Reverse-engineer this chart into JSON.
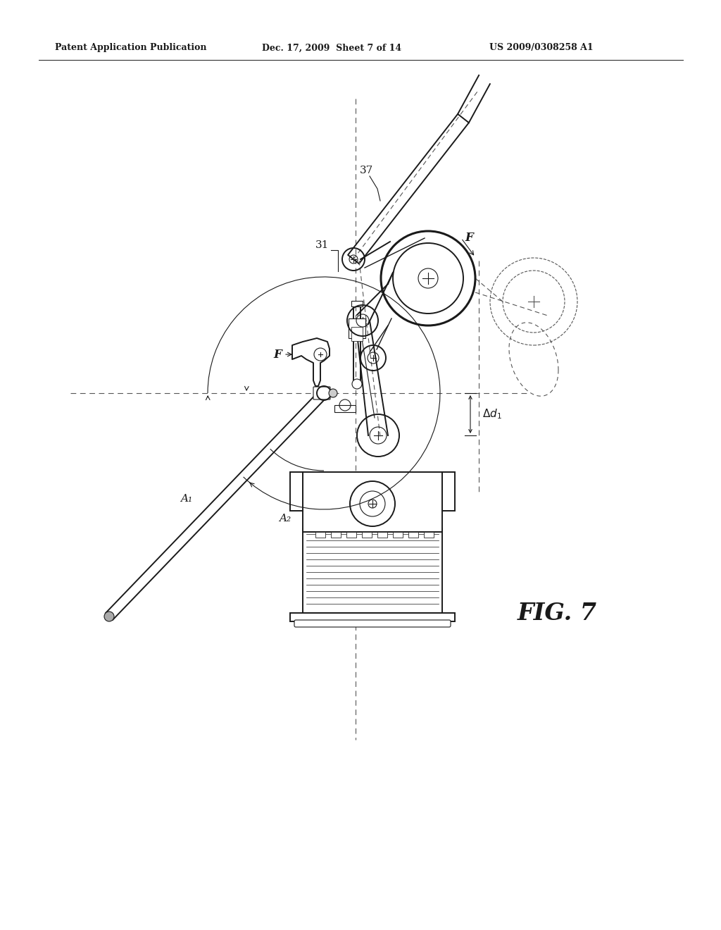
{
  "bg_color": "#ffffff",
  "header_left": "Patent Application Publication",
  "header_mid": "Dec. 17, 2009  Sheet 7 of 14",
  "header_right": "US 2009/0308258 A1",
  "fig_label": "FIG. 7",
  "label_31": "31",
  "label_37": "37",
  "label_F_top": "F",
  "label_F_left": "F",
  "label_A1": "A₁",
  "label_A2": "A₂",
  "label_delta_d": "Δd₁",
  "lw_main": 1.4,
  "lw_thin": 0.8,
  "lw_thick": 2.2,
  "lw_med": 1.0,
  "color_main": "#1a1a1a",
  "color_dash": "#555555"
}
